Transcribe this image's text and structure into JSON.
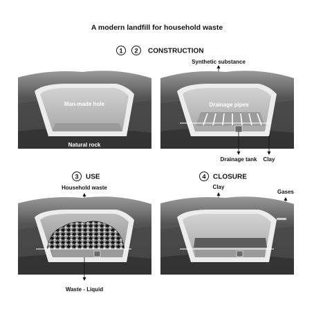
{
  "title": "A modern landfill for household waste",
  "stages": {
    "construction": {
      "numbers": [
        "1",
        "2"
      ],
      "heading": "CONSTRUCTION"
    },
    "use": {
      "number": "3",
      "heading": "USE"
    },
    "closure": {
      "number": "4",
      "heading": "CLOSURE"
    }
  },
  "labels": {
    "man_made_hole": "Man-made hole",
    "natural_rock": "Natural rock",
    "synthetic_substance": "Synthetic substance",
    "drainage_pipes": "Drainage pipes",
    "drainage_tank": "Drainage tank",
    "clay_bottom": "Clay",
    "household_waste": "Household waste",
    "waste_liquid": "Waste - Liquid",
    "clay_top": "Clay",
    "gases": "Gases"
  },
  "colors": {
    "rock_dark": "#3d3d3d",
    "rock_mid": "#5e5e5e",
    "rock_light": "#8a8a8a",
    "lining": "#e6e6e6",
    "pit": "#b8b8b8"
  }
}
